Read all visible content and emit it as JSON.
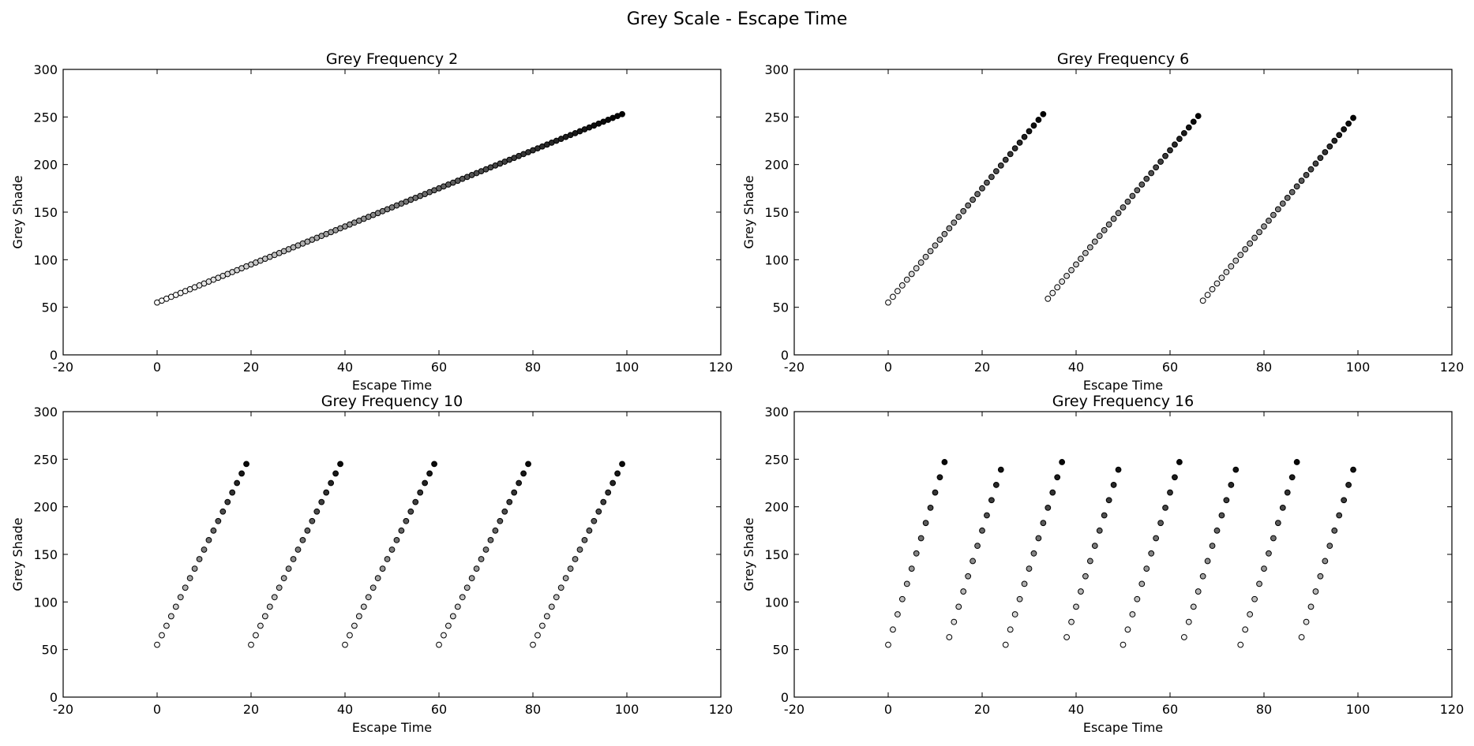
{
  "suptitle": "Grey Scale - Escape Time",
  "chart_data": [
    {
      "type": "scatter",
      "title": "Grey Frequency 2",
      "xlabel": "Escape Time",
      "ylabel": "Grey Shade",
      "xlim": [
        -20,
        120
      ],
      "ylim": [
        0,
        300
      ],
      "xticks": [
        -20,
        0,
        20,
        40,
        60,
        80,
        100,
        120
      ],
      "yticks": [
        0,
        50,
        100,
        150,
        200,
        250,
        300
      ],
      "grid": false,
      "marker": "circle, black edge, fill from white (low shade) to black (high shade)",
      "x": [
        0,
        1,
        2,
        3,
        4,
        5,
        6,
        7,
        8,
        9,
        10,
        11,
        12,
        13,
        14,
        15,
        16,
        17,
        18,
        19,
        20,
        21,
        22,
        23,
        24,
        25,
        26,
        27,
        28,
        29,
        30,
        31,
        32,
        33,
        34,
        35,
        36,
        37,
        38,
        39,
        40,
        41,
        42,
        43,
        44,
        45,
        46,
        47,
        48,
        49,
        50,
        51,
        52,
        53,
        54,
        55,
        56,
        57,
        58,
        59,
        60,
        61,
        62,
        63,
        64,
        65,
        66,
        67,
        68,
        69,
        70,
        71,
        72,
        73,
        74,
        75,
        76,
        77,
        78,
        79,
        80,
        81,
        82,
        83,
        84,
        85,
        86,
        87,
        88,
        89,
        90,
        91,
        92,
        93,
        94,
        95,
        96,
        97,
        98,
        99
      ],
      "y": [
        55,
        57,
        59,
        61,
        63,
        65,
        67,
        69,
        71,
        73,
        75,
        77,
        79,
        81,
        83,
        85,
        87,
        89,
        91,
        93,
        95,
        97,
        99,
        101,
        103,
        105,
        107,
        109,
        111,
        113,
        115,
        117,
        119,
        121,
        123,
        125,
        127,
        129,
        131,
        133,
        135,
        137,
        139,
        141,
        143,
        145,
        147,
        149,
        151,
        153,
        155,
        157,
        159,
        161,
        163,
        165,
        167,
        169,
        171,
        173,
        175,
        177,
        179,
        181,
        183,
        185,
        187,
        189,
        191,
        193,
        195,
        197,
        199,
        201,
        203,
        205,
        207,
        209,
        211,
        213,
        215,
        217,
        219,
        221,
        223,
        225,
        227,
        229,
        231,
        233,
        235,
        237,
        239,
        241,
        243,
        245,
        247,
        249,
        251,
        253
      ]
    },
    {
      "type": "scatter",
      "title": "Grey Frequency 6",
      "xlabel": "Escape Time",
      "ylabel": "Grey Shade",
      "xlim": [
        -20,
        120
      ],
      "ylim": [
        0,
        300
      ],
      "xticks": [
        -20,
        0,
        20,
        40,
        60,
        80,
        100,
        120
      ],
      "yticks": [
        0,
        50,
        100,
        150,
        200,
        250,
        300
      ],
      "grid": false,
      "x": [
        0,
        1,
        2,
        3,
        4,
        5,
        6,
        7,
        8,
        9,
        10,
        11,
        12,
        13,
        14,
        15,
        16,
        17,
        18,
        19,
        20,
        21,
        22,
        23,
        24,
        25,
        26,
        27,
        28,
        29,
        30,
        31,
        32,
        33,
        34,
        35,
        36,
        37,
        38,
        39,
        40,
        41,
        42,
        43,
        44,
        45,
        46,
        47,
        48,
        49,
        50,
        51,
        52,
        53,
        54,
        55,
        56,
        57,
        58,
        59,
        60,
        61,
        62,
        63,
        64,
        65,
        66,
        67,
        68,
        69,
        70,
        71,
        72,
        73,
        74,
        75,
        76,
        77,
        78,
        79,
        80,
        81,
        82,
        83,
        84,
        85,
        86,
        87,
        88,
        89,
        90,
        91,
        92,
        93,
        94,
        95,
        96,
        97,
        98,
        99
      ],
      "y": [
        55,
        61,
        67,
        73,
        79,
        85,
        91,
        97,
        103,
        109,
        115,
        121,
        127,
        133,
        139,
        145,
        151,
        157,
        163,
        169,
        175,
        181,
        187,
        193,
        199,
        205,
        211,
        217,
        223,
        229,
        235,
        241,
        247,
        253,
        59,
        65,
        71,
        77,
        83,
        89,
        95,
        101,
        107,
        113,
        119,
        125,
        131,
        137,
        143,
        149,
        155,
        161,
        167,
        173,
        179,
        185,
        191,
        197,
        203,
        209,
        215,
        221,
        227,
        233,
        239,
        245,
        251,
        57,
        63,
        69,
        75,
        81,
        87,
        93,
        99,
        105,
        111,
        117,
        123,
        129,
        135,
        141,
        147,
        153,
        159,
        165,
        171,
        177,
        183,
        189,
        195,
        201,
        207,
        213,
        219,
        225,
        231,
        237,
        243,
        249
      ]
    },
    {
      "type": "scatter",
      "title": "Grey Frequency 10",
      "xlabel": "Escape Time",
      "ylabel": "Grey Shade",
      "xlim": [
        -20,
        120
      ],
      "ylim": [
        0,
        300
      ],
      "xticks": [
        -20,
        0,
        20,
        40,
        60,
        80,
        100,
        120
      ],
      "yticks": [
        0,
        50,
        100,
        150,
        200,
        250,
        300
      ],
      "grid": false,
      "x": [
        0,
        1,
        2,
        3,
        4,
        5,
        6,
        7,
        8,
        9,
        10,
        11,
        12,
        13,
        14,
        15,
        16,
        17,
        18,
        19,
        20,
        21,
        22,
        23,
        24,
        25,
        26,
        27,
        28,
        29,
        30,
        31,
        32,
        33,
        34,
        35,
        36,
        37,
        38,
        39,
        40,
        41,
        42,
        43,
        44,
        45,
        46,
        47,
        48,
        49,
        50,
        51,
        52,
        53,
        54,
        55,
        56,
        57,
        58,
        59,
        60,
        61,
        62,
        63,
        64,
        65,
        66,
        67,
        68,
        69,
        70,
        71,
        72,
        73,
        74,
        75,
        76,
        77,
        78,
        79,
        80,
        81,
        82,
        83,
        84,
        85,
        86,
        87,
        88,
        89,
        90,
        91,
        92,
        93,
        94,
        95,
        96,
        97,
        98,
        99
      ],
      "y": [
        55,
        65,
        75,
        85,
        95,
        105,
        115,
        125,
        135,
        145,
        155,
        165,
        175,
        185,
        195,
        205,
        215,
        225,
        235,
        245,
        55,
        65,
        75,
        85,
        95,
        105,
        115,
        125,
        135,
        145,
        155,
        165,
        175,
        185,
        195,
        205,
        215,
        225,
        235,
        245,
        55,
        65,
        75,
        85,
        95,
        105,
        115,
        125,
        135,
        145,
        155,
        165,
        175,
        185,
        195,
        205,
        215,
        225,
        235,
        245,
        55,
        65,
        75,
        85,
        95,
        105,
        115,
        125,
        135,
        145,
        155,
        165,
        175,
        185,
        195,
        205,
        215,
        225,
        235,
        245,
        55,
        65,
        75,
        85,
        95,
        105,
        115,
        125,
        135,
        145,
        155,
        165,
        175,
        185,
        195,
        205,
        215,
        225,
        235,
        245
      ]
    },
    {
      "type": "scatter",
      "title": "Grey Frequency 16",
      "xlabel": "Escape Time",
      "ylabel": "Grey Shade",
      "xlim": [
        -20,
        120
      ],
      "ylim": [
        0,
        300
      ],
      "xticks": [
        -20,
        0,
        20,
        40,
        60,
        80,
        100,
        120
      ],
      "yticks": [
        0,
        50,
        100,
        150,
        200,
        250,
        300
      ],
      "grid": false,
      "x": [
        0,
        1,
        2,
        3,
        4,
        5,
        6,
        7,
        8,
        9,
        10,
        11,
        12,
        13,
        14,
        15,
        16,
        17,
        18,
        19,
        20,
        21,
        22,
        23,
        24,
        25,
        26,
        27,
        28,
        29,
        30,
        31,
        32,
        33,
        34,
        35,
        36,
        37,
        38,
        39,
        40,
        41,
        42,
        43,
        44,
        45,
        46,
        47,
        48,
        49,
        50,
        51,
        52,
        53,
        54,
        55,
        56,
        57,
        58,
        59,
        60,
        61,
        62,
        63,
        64,
        65,
        66,
        67,
        68,
        69,
        70,
        71,
        72,
        73,
        74,
        75,
        76,
        77,
        78,
        79,
        80,
        81,
        82,
        83,
        84,
        85,
        86,
        87,
        88,
        89,
        90,
        91,
        92,
        93,
        94,
        95,
        96,
        97,
        98,
        99
      ],
      "y": [
        55,
        71,
        87,
        103,
        119,
        135,
        151,
        167,
        183,
        199,
        215,
        231,
        247,
        63,
        79,
        95,
        111,
        127,
        143,
        159,
        175,
        191,
        207,
        223,
        239,
        55,
        71,
        87,
        103,
        119,
        135,
        151,
        167,
        183,
        199,
        215,
        231,
        247,
        63,
        79,
        95,
        111,
        127,
        143,
        159,
        175,
        191,
        207,
        223,
        239,
        55,
        71,
        87,
        103,
        119,
        135,
        151,
        167,
        183,
        199,
        215,
        231,
        247,
        63,
        79,
        95,
        111,
        127,
        143,
        159,
        175,
        191,
        207,
        223,
        239,
        55,
        71,
        87,
        103,
        119,
        135,
        151,
        167,
        183,
        199,
        215,
        231,
        247,
        63,
        79,
        95,
        111,
        127,
        143,
        159,
        175,
        191,
        207,
        223,
        239
      ]
    }
  ]
}
